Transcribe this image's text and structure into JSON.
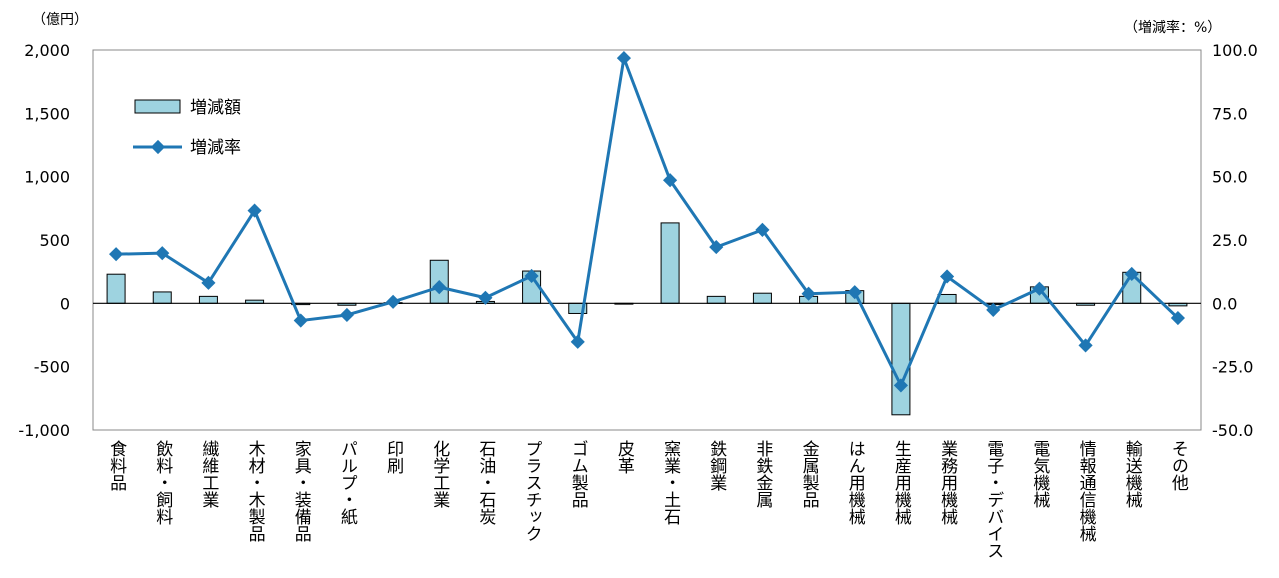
{
  "chart_data": {
    "type": "bar+line",
    "units": {
      "left": "（億円）",
      "right": "（増減率：%）"
    },
    "categories": [
      "食料品",
      "飲料・飼料",
      "繊維工業",
      "木材・木製品",
      "家具・装備品",
      "パルプ・紙",
      "印刷",
      "化学工業",
      "石油・石炭",
      "プラスチック",
      "ゴム製品",
      "皮革",
      "窯業・土石",
      "鉄鋼業",
      "非鉄金属",
      "金属製品",
      "はん用機械",
      "生産用機械",
      "業務用機械",
      "電子・デバイス",
      "電気機械",
      "情報通信機械",
      "輸送機械",
      "その他"
    ],
    "series": [
      {
        "name": "増減額",
        "type": "bar",
        "axis": "left",
        "color": "#9ed3e0",
        "values": [
          230,
          90,
          55,
          25,
          -10,
          -15,
          5,
          340,
          15,
          255,
          -80,
          0,
          635,
          55,
          80,
          55,
          100,
          -880,
          70,
          -10,
          130,
          -15,
          245,
          -20
        ]
      },
      {
        "name": "増減率",
        "type": "line",
        "axis": "right",
        "color": "#1f77b4",
        "values": [
          19.4,
          19.8,
          8.1,
          36.6,
          -6.8,
          -4.6,
          0.6,
          6.4,
          2.2,
          10.8,
          -15.2,
          96.8,
          48.6,
          22.2,
          29.0,
          3.8,
          4.4,
          -32.4,
          10.6,
          -2.6,
          5.8,
          -16.6,
          11.6,
          -5.8
        ]
      }
    ],
    "y_left": {
      "min": -1000,
      "max": 2000,
      "ticks": [
        "-1,000",
        "-500",
        "0",
        "500",
        "1,000",
        "1,500",
        "2,000"
      ]
    },
    "y_right": {
      "min": -50,
      "max": 100,
      "ticks": [
        "-50.0",
        "-25.0",
        "0.0",
        "25.0",
        "50.0",
        "75.0",
        "100.0"
      ]
    },
    "legend": {
      "position": "top-left",
      "entries": [
        "増減額",
        "増減率"
      ]
    },
    "grid": false
  }
}
